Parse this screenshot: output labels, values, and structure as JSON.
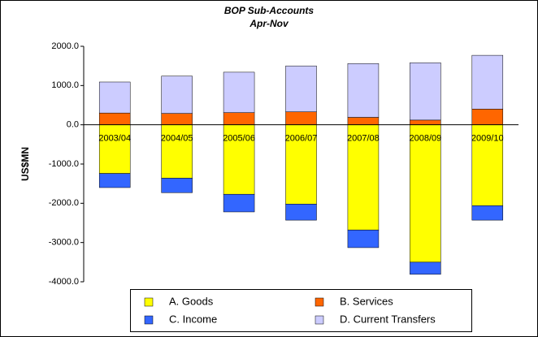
{
  "chart_data": {
    "type": "stacked_bar",
    "title": "BOP Sub-Accounts",
    "subtitle": "Apr-Nov",
    "y_label": "US$MN",
    "categories": [
      "2003/04",
      "2004/05",
      "2005/06",
      "2006/07",
      "2007/08",
      "2008/09",
      "2009/10"
    ],
    "series": [
      {
        "name": "A. Goods",
        "color": "#ffff00",
        "values": [
          -1240,
          -1360,
          -1770,
          -2020,
          -2680,
          -3500,
          -2060
        ]
      },
      {
        "name": "B. Services",
        "color": "#ff6600",
        "values": [
          300,
          290,
          310,
          330,
          190,
          120,
          400
        ]
      },
      {
        "name": "C. Income",
        "color": "#3366ff",
        "values": [
          -360,
          -370,
          -450,
          -410,
          -450,
          -310,
          -370
        ]
      },
      {
        "name": "D. Current Transfers",
        "color": "#ccccff",
        "values": [
          790,
          950,
          1030,
          1170,
          1370,
          1460,
          1370
        ]
      }
    ],
    "ylim": [
      -4000,
      2000
    ],
    "yticks": [
      {
        "value": -4000,
        "label": "-4000.0"
      },
      {
        "value": -3000,
        "label": "-3000.0"
      },
      {
        "value": -2000,
        "label": "-2000.0"
      },
      {
        "value": -1000,
        "label": "-1000.0"
      },
      {
        "value": 0,
        "label": "0.0"
      },
      {
        "value": 1000,
        "label": "1000.0"
      },
      {
        "value": 2000,
        "label": "2000.0"
      }
    ],
    "legend": "bottom"
  }
}
